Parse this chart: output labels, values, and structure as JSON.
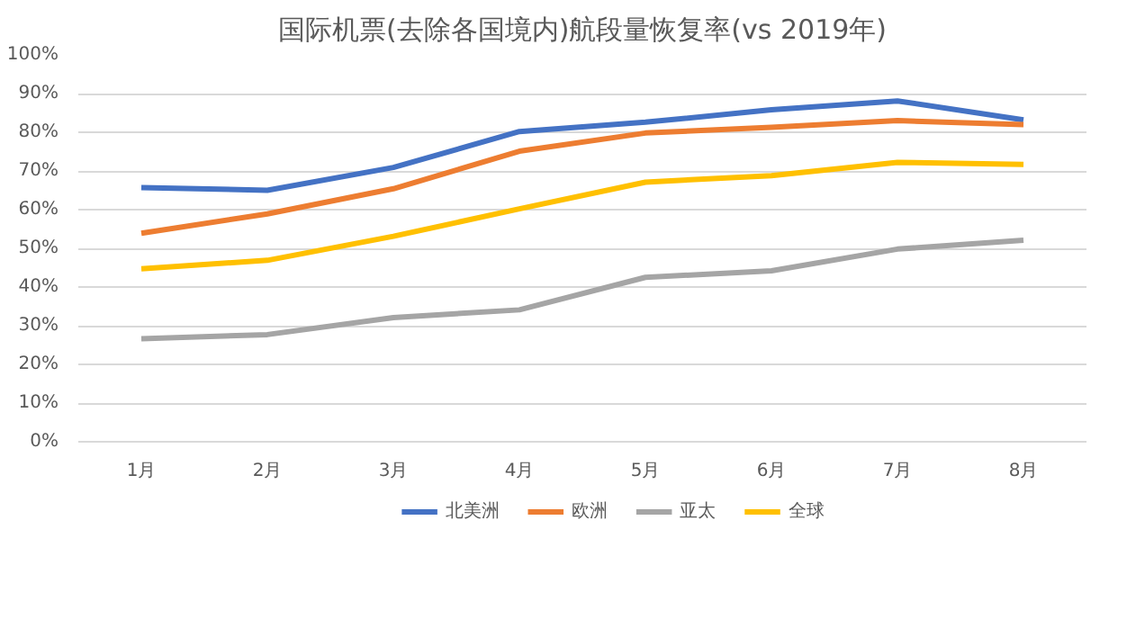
{
  "chart_data": {
    "type": "line",
    "title": "国际机票(去除各国境内)航段量恢复率(vs 2019年)",
    "categories": [
      "1月",
      "2月",
      "3月",
      "4月",
      "5月",
      "6月",
      "7月",
      "8月"
    ],
    "series": [
      {
        "name": "北美洲",
        "color": "#4472c4",
        "values": [
          65.7,
          65.0,
          70.9,
          80.2,
          82.6,
          85.8,
          88.1,
          83.2
        ]
      },
      {
        "name": "欧洲",
        "color": "#ed7d31",
        "values": [
          53.9,
          58.9,
          65.4,
          75.1,
          79.8,
          81.3,
          83.0,
          82.0
        ]
      },
      {
        "name": "亚太",
        "color": "#a5a5a5",
        "values": [
          26.6,
          27.7,
          32.1,
          34.1,
          42.5,
          44.2,
          49.8,
          52.1
        ]
      },
      {
        "name": "全球",
        "color": "#ffc000",
        "values": [
          44.7,
          46.9,
          53.1,
          60.2,
          67.1,
          68.8,
          72.2,
          71.7
        ]
      }
    ],
    "ylim": [
      0,
      100
    ],
    "yticks": [
      {
        "value": 0,
        "label": "0%"
      },
      {
        "value": 10,
        "label": "10%"
      },
      {
        "value": 20,
        "label": "20%"
      },
      {
        "value": 30,
        "label": "30%"
      },
      {
        "value": 40,
        "label": "40%"
      },
      {
        "value": 50,
        "label": "50%"
      },
      {
        "value": 60,
        "label": "60%"
      },
      {
        "value": 70,
        "label": "70%"
      },
      {
        "value": 80,
        "label": "80%"
      },
      {
        "value": 90,
        "label": "90%"
      },
      {
        "value": 100,
        "label": "100%"
      }
    ],
    "grid": "y",
    "legend": "bottom",
    "marker": "none",
    "line_style": "solid"
  }
}
